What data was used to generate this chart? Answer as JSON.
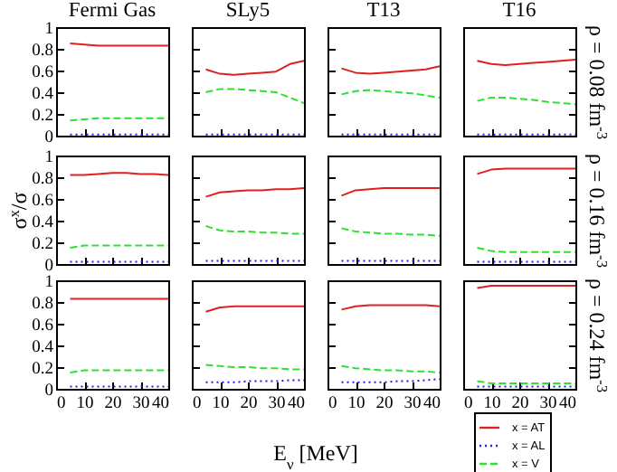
{
  "chart_data": [
    {
      "type": "line",
      "title": "Fermi Gas",
      "x": [
        5,
        10,
        15,
        20,
        25,
        30,
        35,
        40
      ],
      "xlim": [
        0,
        40
      ],
      "ylim": [
        0,
        1
      ],
      "xticks": [
        0,
        10,
        20,
        30,
        40
      ],
      "yticks": [
        0,
        0.2,
        0.4,
        0.6,
        0.8,
        1
      ],
      "tick_labels": "y",
      "series": [
        {
          "color": "#e02020",
          "line_style": "solid",
          "values": [
            0.85,
            0.84,
            0.83,
            0.83,
            0.83,
            0.83,
            0.83,
            0.83
          ]
        },
        {
          "color": "#2020e0",
          "line_style": "dotted",
          "values": [
            0.01,
            0.01,
            0.01,
            0.01,
            0.01,
            0.01,
            0.01,
            0.01
          ]
        },
        {
          "color": "#30e030",
          "line_style": "dashed",
          "values": [
            0.14,
            0.15,
            0.16,
            0.16,
            0.16,
            0.16,
            0.16,
            0.16
          ]
        }
      ]
    },
    {
      "type": "line",
      "title": "SLy5",
      "x": [
        5,
        10,
        15,
        20,
        25,
        30,
        35,
        40
      ],
      "xlim": [
        0,
        40
      ],
      "ylim": [
        0,
        1
      ],
      "xticks": [
        0,
        10,
        20,
        30,
        40
      ],
      "yticks": [
        0,
        0.2,
        0.4,
        0.6,
        0.8,
        1
      ],
      "tick_labels": false,
      "series": [
        {
          "color": "#e02020",
          "line_style": "solid",
          "values": [
            0.61,
            0.57,
            0.56,
            0.57,
            0.58,
            0.59,
            0.66,
            0.69
          ]
        },
        {
          "color": "#2020e0",
          "line_style": "dotted",
          "values": [
            0.01,
            0.01,
            0.01,
            0.01,
            0.01,
            0.01,
            0.01,
            0.01
          ]
        },
        {
          "color": "#30e030",
          "line_style": "dashed",
          "values": [
            0.4,
            0.43,
            0.43,
            0.42,
            0.41,
            0.4,
            0.35,
            0.3
          ]
        }
      ]
    },
    {
      "type": "line",
      "title": "T13",
      "x": [
        5,
        10,
        15,
        20,
        25,
        30,
        35,
        40
      ],
      "xlim": [
        0,
        40
      ],
      "ylim": [
        0,
        1
      ],
      "xticks": [
        0,
        10,
        20,
        30,
        40
      ],
      "yticks": [
        0,
        0.2,
        0.4,
        0.6,
        0.8,
        1
      ],
      "tick_labels": false,
      "series": [
        {
          "color": "#e02020",
          "line_style": "solid",
          "values": [
            0.62,
            0.58,
            0.57,
            0.58,
            0.59,
            0.6,
            0.61,
            0.64
          ]
        },
        {
          "color": "#2020e0",
          "line_style": "dotted",
          "values": [
            0.01,
            0.01,
            0.01,
            0.01,
            0.01,
            0.01,
            0.01,
            0.01
          ]
        },
        {
          "color": "#30e030",
          "line_style": "dashed",
          "values": [
            0.38,
            0.41,
            0.42,
            0.41,
            0.4,
            0.39,
            0.37,
            0.35
          ]
        }
      ]
    },
    {
      "type": "line",
      "title": "T16",
      "y2label": "ρ = 0.08 fm$^{-3}$",
      "x": [
        5,
        10,
        15,
        20,
        25,
        30,
        35,
        40
      ],
      "xlim": [
        0,
        40
      ],
      "ylim": [
        0,
        1
      ],
      "xticks": [
        0,
        10,
        20,
        30,
        40
      ],
      "yticks": [
        0,
        0.2,
        0.4,
        0.6,
        0.8,
        1
      ],
      "tick_labels": false,
      "series": [
        {
          "color": "#e02020",
          "line_style": "solid",
          "values": [
            0.69,
            0.66,
            0.65,
            0.66,
            0.67,
            0.68,
            0.69,
            0.7
          ]
        },
        {
          "color": "#2020e0",
          "line_style": "dotted",
          "values": [
            0.01,
            0.01,
            0.01,
            0.01,
            0.01,
            0.01,
            0.01,
            0.01
          ]
        },
        {
          "color": "#30e030",
          "line_style": "dashed",
          "values": [
            0.32,
            0.35,
            0.35,
            0.34,
            0.33,
            0.31,
            0.3,
            0.29
          ]
        }
      ]
    },
    {
      "type": "line",
      "ylabel": "σ$^{x}$/σ",
      "x": [
        5,
        10,
        15,
        20,
        25,
        30,
        35,
        40
      ],
      "xlim": [
        0,
        40
      ],
      "ylim": [
        0,
        1
      ],
      "xticks": [
        0,
        10,
        20,
        30,
        40
      ],
      "yticks": [
        0,
        0.2,
        0.4,
        0.6,
        0.8,
        1
      ],
      "tick_labels": "y",
      "series": [
        {
          "color": "#e02020",
          "line_style": "solid",
          "values": [
            0.82,
            0.82,
            0.83,
            0.84,
            0.84,
            0.83,
            0.83,
            0.82
          ]
        },
        {
          "color": "#2020e0",
          "line_style": "dotted",
          "values": [
            0.02,
            0.02,
            0.02,
            0.02,
            0.02,
            0.02,
            0.02,
            0.02
          ]
        },
        {
          "color": "#30e030",
          "line_style": "dashed",
          "values": [
            0.15,
            0.17,
            0.17,
            0.17,
            0.17,
            0.17,
            0.17,
            0.17
          ]
        }
      ]
    },
    {
      "type": "line",
      "x": [
        5,
        10,
        15,
        20,
        25,
        30,
        35,
        40
      ],
      "xlim": [
        0,
        40
      ],
      "ylim": [
        0,
        1
      ],
      "xticks": [
        0,
        10,
        20,
        30,
        40
      ],
      "yticks": [
        0,
        0.2,
        0.4,
        0.6,
        0.8,
        1
      ],
      "tick_labels": false,
      "series": [
        {
          "color": "#e02020",
          "line_style": "solid",
          "values": [
            0.62,
            0.66,
            0.67,
            0.68,
            0.68,
            0.69,
            0.69,
            0.7
          ]
        },
        {
          "color": "#2020e0",
          "line_style": "dotted",
          "values": [
            0.03,
            0.03,
            0.03,
            0.03,
            0.03,
            0.03,
            0.03,
            0.03
          ]
        },
        {
          "color": "#30e030",
          "line_style": "dashed",
          "values": [
            0.35,
            0.31,
            0.3,
            0.3,
            0.29,
            0.29,
            0.28,
            0.28
          ]
        }
      ]
    },
    {
      "type": "line",
      "x": [
        5,
        10,
        15,
        20,
        25,
        30,
        35,
        40
      ],
      "xlim": [
        0,
        40
      ],
      "ylim": [
        0,
        1
      ],
      "xticks": [
        0,
        10,
        20,
        30,
        40
      ],
      "yticks": [
        0,
        0.2,
        0.4,
        0.6,
        0.8,
        1
      ],
      "tick_labels": false,
      "series": [
        {
          "color": "#e02020",
          "line_style": "solid",
          "values": [
            0.63,
            0.68,
            0.69,
            0.7,
            0.7,
            0.7,
            0.7,
            0.7
          ]
        },
        {
          "color": "#2020e0",
          "line_style": "dotted",
          "values": [
            0.03,
            0.03,
            0.03,
            0.03,
            0.03,
            0.03,
            0.03,
            0.03
          ]
        },
        {
          "color": "#30e030",
          "line_style": "dashed",
          "values": [
            0.33,
            0.3,
            0.29,
            0.28,
            0.28,
            0.27,
            0.27,
            0.26
          ]
        }
      ]
    },
    {
      "type": "line",
      "y2label": "ρ = 0.16 fm$^{-3}$",
      "x": [
        5,
        10,
        15,
        20,
        25,
        30,
        35,
        40
      ],
      "xlim": [
        0,
        40
      ],
      "ylim": [
        0,
        1
      ],
      "xticks": [
        0,
        10,
        20,
        30,
        40
      ],
      "yticks": [
        0,
        0.2,
        0.4,
        0.6,
        0.8,
        1
      ],
      "tick_labels": false,
      "series": [
        {
          "color": "#e02020",
          "line_style": "solid",
          "values": [
            0.83,
            0.87,
            0.88,
            0.88,
            0.88,
            0.88,
            0.88,
            0.88
          ]
        },
        {
          "color": "#2020e0",
          "line_style": "dotted",
          "values": [
            0.02,
            0.02,
            0.02,
            0.02,
            0.02,
            0.02,
            0.02,
            0.02
          ]
        },
        {
          "color": "#30e030",
          "line_style": "dashed",
          "values": [
            0.15,
            0.12,
            0.11,
            0.11,
            0.11,
            0.11,
            0.11,
            0.11
          ]
        }
      ]
    },
    {
      "type": "line",
      "x": [
        5,
        10,
        15,
        20,
        25,
        30,
        35,
        40
      ],
      "xlim": [
        0,
        40
      ],
      "ylim": [
        0,
        1
      ],
      "xticks": [
        0,
        10,
        20,
        30,
        40
      ],
      "yticks": [
        0,
        0.2,
        0.4,
        0.6,
        0.8,
        1
      ],
      "series": [
        {
          "color": "#e02020",
          "line_style": "solid",
          "values": [
            0.83,
            0.83,
            0.83,
            0.83,
            0.83,
            0.83,
            0.83,
            0.83
          ]
        },
        {
          "color": "#2020e0",
          "line_style": "dotted",
          "values": [
            0.02,
            0.02,
            0.02,
            0.02,
            0.02,
            0.02,
            0.02,
            0.02
          ]
        },
        {
          "color": "#30e030",
          "line_style": "dashed",
          "values": [
            0.15,
            0.17,
            0.17,
            0.17,
            0.17,
            0.17,
            0.17,
            0.17
          ]
        }
      ]
    },
    {
      "type": "line",
      "xlabel": "E$_{ν}$ [MeV]",
      "x": [
        5,
        10,
        15,
        20,
        25,
        30,
        35,
        40
      ],
      "xlim": [
        0,
        40
      ],
      "ylim": [
        0,
        1
      ],
      "xticks": [
        0,
        10,
        20,
        30,
        40
      ],
      "yticks": [
        0,
        0.2,
        0.4,
        0.6,
        0.8,
        1
      ],
      "tick_labels": "x",
      "series": [
        {
          "color": "#e02020",
          "line_style": "solid",
          "values": [
            0.71,
            0.75,
            0.76,
            0.76,
            0.76,
            0.76,
            0.76,
            0.76
          ]
        },
        {
          "color": "#2020e0",
          "line_style": "dotted",
          "values": [
            0.06,
            0.06,
            0.06,
            0.07,
            0.07,
            0.07,
            0.08,
            0.08
          ]
        },
        {
          "color": "#30e030",
          "line_style": "dashed",
          "values": [
            0.22,
            0.21,
            0.2,
            0.2,
            0.19,
            0.19,
            0.18,
            0.18
          ]
        }
      ]
    },
    {
      "type": "line",
      "x": [
        5,
        10,
        15,
        20,
        25,
        30,
        35,
        40
      ],
      "xlim": [
        0,
        40
      ],
      "ylim": [
        0,
        1
      ],
      "xticks": [
        0,
        10,
        20,
        30,
        40
      ],
      "yticks": [
        0,
        0.2,
        0.4,
        0.6,
        0.8,
        1
      ],
      "tick_labels": "x",
      "series": [
        {
          "color": "#e02020",
          "line_style": "solid",
          "values": [
            0.73,
            0.76,
            0.77,
            0.77,
            0.77,
            0.77,
            0.77,
            0.76
          ]
        },
        {
          "color": "#2020e0",
          "line_style": "dotted",
          "values": [
            0.06,
            0.06,
            0.06,
            0.06,
            0.07,
            0.07,
            0.08,
            0.09
          ]
        },
        {
          "color": "#30e030",
          "line_style": "dashed",
          "values": [
            0.21,
            0.19,
            0.18,
            0.17,
            0.17,
            0.16,
            0.16,
            0.15
          ]
        }
      ]
    },
    {
      "type": "line",
      "y2label": "ρ = 0.24 fm$^{-3}$",
      "legend": "bottom",
      "x": [
        5,
        10,
        15,
        20,
        25,
        30,
        35,
        40
      ],
      "xlim": [
        0,
        40
      ],
      "ylim": [
        0,
        1
      ],
      "xticks": [
        0,
        10,
        20,
        30,
        40
      ],
      "yticks": [
        0,
        0.2,
        0.4,
        0.6,
        0.8,
        1
      ],
      "tick_labels": "x",
      "series": [
        {
          "name": "x = AT",
          "color": "#e02020",
          "line_style": "solid",
          "values": [
            0.93,
            0.95,
            0.95,
            0.95,
            0.95,
            0.95,
            0.95,
            0.95
          ]
        },
        {
          "name": "x = AL",
          "color": "#2020e0",
          "line_style": "dotted",
          "values": [
            0.02,
            0.02,
            0.02,
            0.02,
            0.02,
            0.02,
            0.02,
            0.02
          ]
        },
        {
          "name": "x = V",
          "color": "#30e030",
          "line_style": "dashed",
          "values": [
            0.07,
            0.05,
            0.05,
            0.05,
            0.05,
            0.05,
            0.05,
            0.05
          ]
        }
      ]
    }
  ]
}
